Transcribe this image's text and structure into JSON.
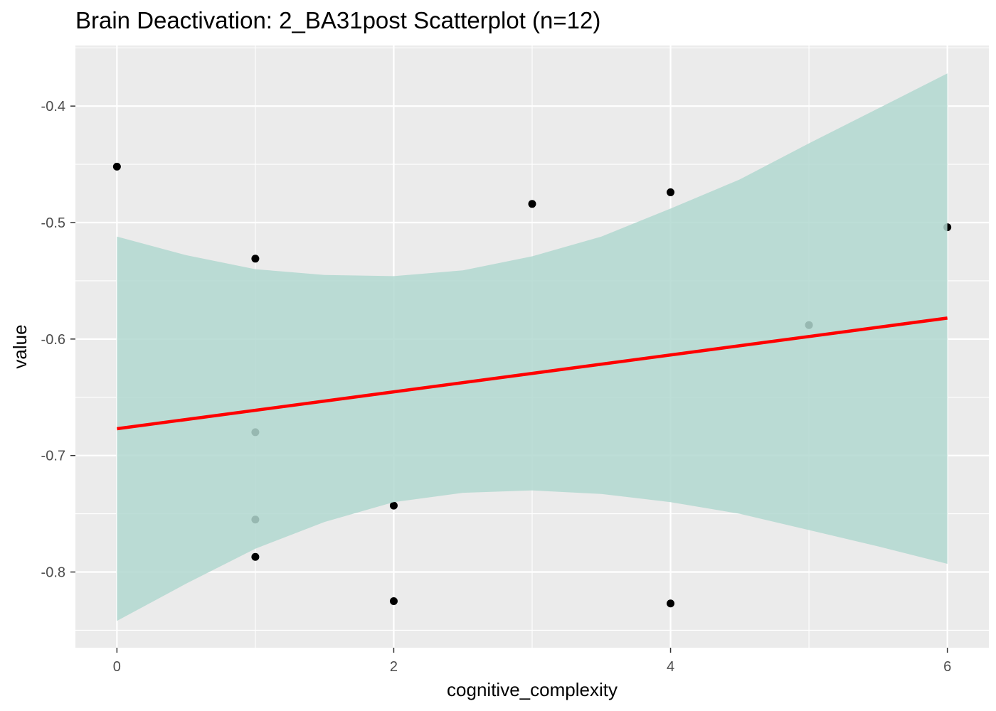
{
  "chart_data": {
    "type": "scatter",
    "title": "Brain Deactivation: 2_BA31post Scatterplot (n=12)",
    "xlabel": "cognitive_complexity",
    "ylabel": "value",
    "xlim": [
      -0.3,
      6.3
    ],
    "ylim": [
      -0.865,
      -0.348
    ],
    "x_ticks": [
      0,
      2,
      4,
      6
    ],
    "x_tick_labels": [
      "0",
      "2",
      "4",
      "6"
    ],
    "y_ticks": [
      -0.4,
      -0.5,
      -0.6,
      -0.7,
      -0.8
    ],
    "y_tick_labels": [
      "-0.4",
      "-0.5",
      "-0.6",
      "-0.7",
      "-0.8"
    ],
    "grid": true,
    "points": {
      "x": [
        0,
        1,
        1,
        1,
        1,
        2,
        2,
        3,
        4,
        4,
        5,
        6
      ],
      "y": [
        -0.452,
        -0.531,
        -0.68,
        -0.755,
        -0.787,
        -0.743,
        -0.825,
        -0.484,
        -0.474,
        -0.827,
        -0.588,
        -0.504
      ]
    },
    "regression_line": {
      "x": [
        0,
        6
      ],
      "y": [
        -0.677,
        -0.582
      ]
    },
    "confidence_band": {
      "x": [
        0,
        0.5,
        1,
        1.5,
        2,
        2.5,
        3,
        3.5,
        4,
        4.5,
        5,
        5.5,
        6
      ],
      "lower": [
        -0.842,
        -0.81,
        -0.78,
        -0.757,
        -0.74,
        -0.732,
        -0.73,
        -0.733,
        -0.74,
        -0.75,
        -0.764,
        -0.778,
        -0.793
      ],
      "upper": [
        -0.512,
        -0.528,
        -0.54,
        -0.545,
        -0.546,
        -0.541,
        -0.529,
        -0.512,
        -0.488,
        -0.463,
        -0.432,
        -0.402,
        -0.372
      ]
    },
    "colors": {
      "panel_background": "#ebebeb",
      "grid": "#ffffff",
      "points": "#000000",
      "line": "#ff0000",
      "band": "#b2d8d0"
    }
  }
}
